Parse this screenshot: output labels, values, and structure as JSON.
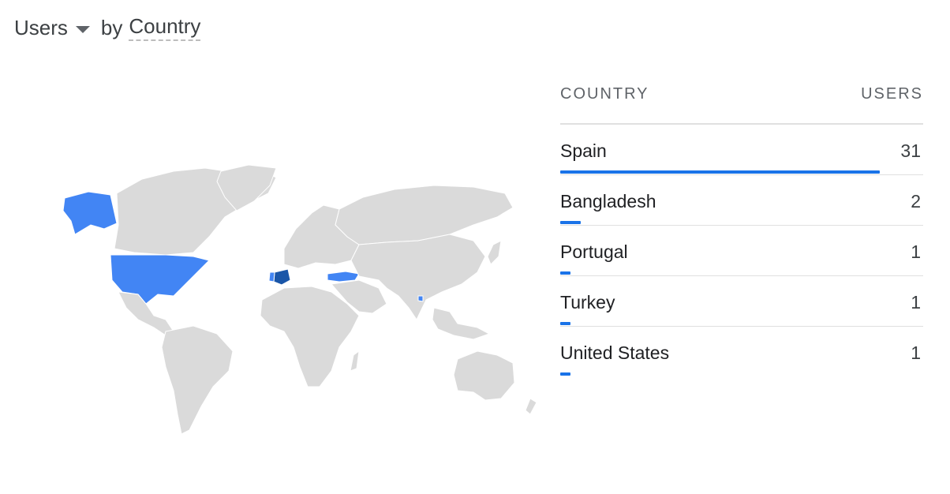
{
  "header": {
    "metric": "Users",
    "by": "by",
    "dimension": "Country"
  },
  "colors": {
    "land": "#dadada",
    "highlight": "#4285f4",
    "top": "#1a56a8",
    "bar": "#1a73e8"
  },
  "table": {
    "col_country": "COUNTRY",
    "col_users": "USERS",
    "rows": [
      {
        "country": "Spain",
        "users": "31",
        "share": 1.0
      },
      {
        "country": "Bangladesh",
        "users": "2",
        "share": 0.065
      },
      {
        "country": "Portugal",
        "users": "1",
        "share": 0.032
      },
      {
        "country": "Turkey",
        "users": "1",
        "share": 0.032
      },
      {
        "country": "United States",
        "users": "1",
        "share": 0.032
      }
    ]
  }
}
